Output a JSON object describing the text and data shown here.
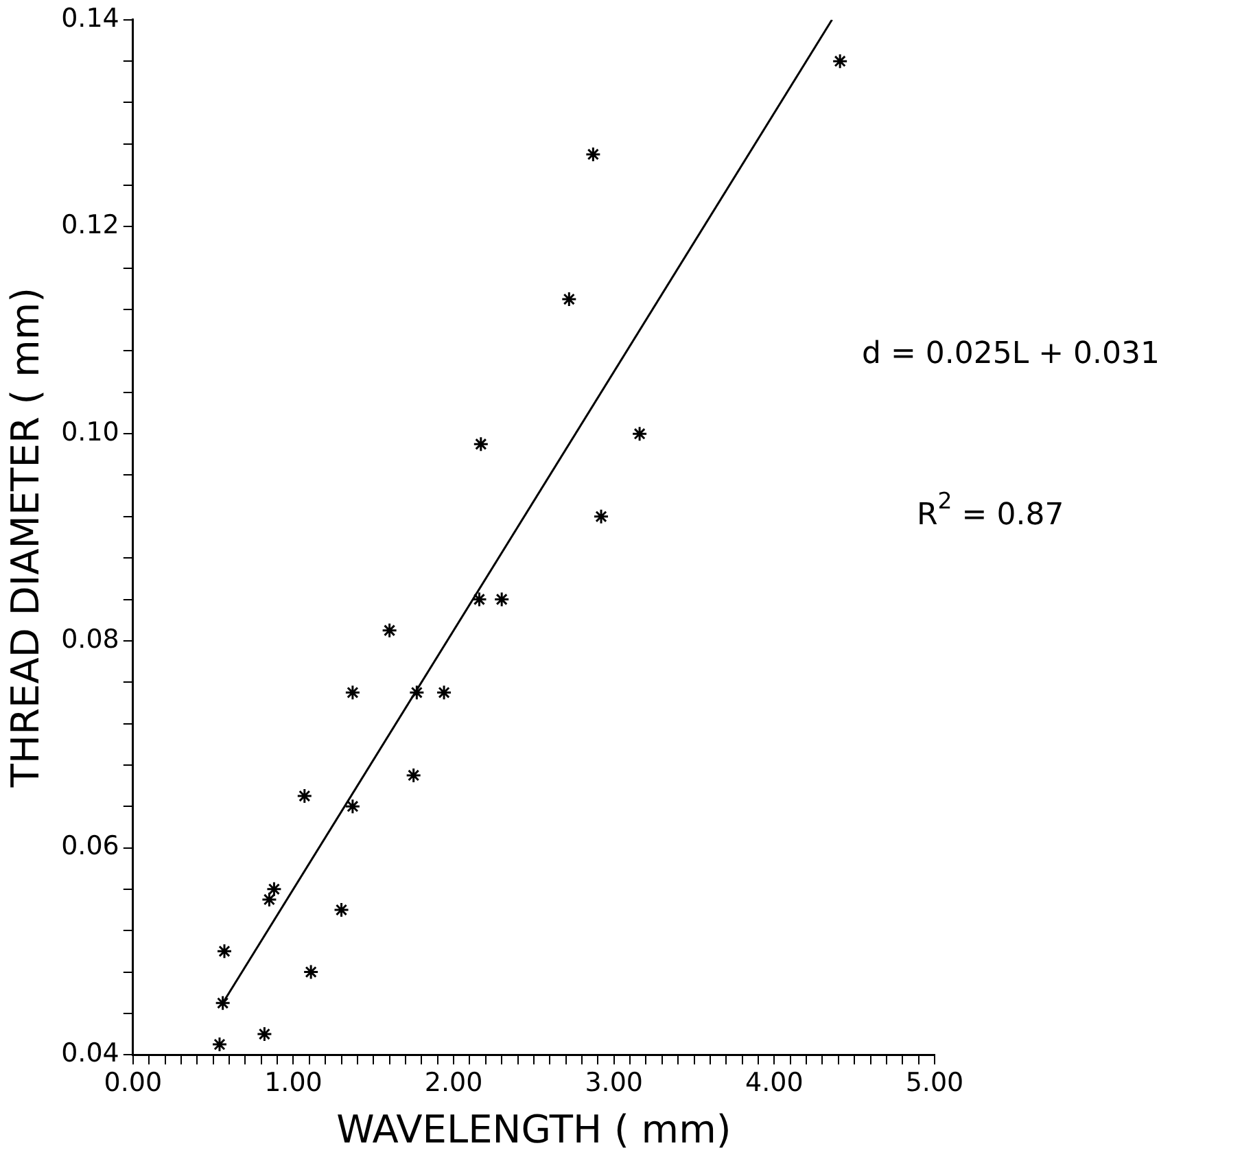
{
  "chart_data": {
    "type": "scatter",
    "xlabel": "WAVELENGTH ( mm)",
    "ylabel": "THREAD DIAMETER ( mm)",
    "xlim": [
      0,
      5
    ],
    "ylim": [
      0.04,
      0.14
    ],
    "xticks": [
      {
        "value": 0,
        "label": "0.00"
      },
      {
        "value": 0.1,
        "label": null
      },
      {
        "value": 0.2,
        "label": null
      },
      {
        "value": 0.3,
        "label": null
      },
      {
        "value": 0.4,
        "label": null
      },
      {
        "value": 0.5,
        "label": null
      },
      {
        "value": 0.6,
        "label": null
      },
      {
        "value": 0.7,
        "label": null
      },
      {
        "value": 0.8,
        "label": null
      },
      {
        "value": 0.9,
        "label": null
      },
      {
        "value": 1,
        "label": "1.00"
      },
      {
        "value": 1.1,
        "label": null
      },
      {
        "value": 1.2,
        "label": null
      },
      {
        "value": 1.3,
        "label": null
      },
      {
        "value": 1.4,
        "label": null
      },
      {
        "value": 1.5,
        "label": null
      },
      {
        "value": 1.6,
        "label": null
      },
      {
        "value": 1.7,
        "label": null
      },
      {
        "value": 1.8,
        "label": null
      },
      {
        "value": 1.9,
        "label": null
      },
      {
        "value": 2,
        "label": "2.00"
      },
      {
        "value": 2.1,
        "label": null
      },
      {
        "value": 2.2,
        "label": null
      },
      {
        "value": 2.3,
        "label": null
      },
      {
        "value": 2.4,
        "label": null
      },
      {
        "value": 2.5,
        "label": null
      },
      {
        "value": 2.6,
        "label": null
      },
      {
        "value": 2.7,
        "label": null
      },
      {
        "value": 2.8,
        "label": null
      },
      {
        "value": 2.9,
        "label": null
      },
      {
        "value": 3,
        "label": "3.00"
      },
      {
        "value": 3.1,
        "label": null
      },
      {
        "value": 3.2,
        "label": null
      },
      {
        "value": 3.3,
        "label": null
      },
      {
        "value": 3.4,
        "label": null
      },
      {
        "value": 3.5,
        "label": null
      },
      {
        "value": 3.6,
        "label": null
      },
      {
        "value": 3.7,
        "label": null
      },
      {
        "value": 3.8,
        "label": null
      },
      {
        "value": 3.9,
        "label": null
      },
      {
        "value": 4,
        "label": "4.00"
      },
      {
        "value": 4.1,
        "label": null
      },
      {
        "value": 4.2,
        "label": null
      },
      {
        "value": 4.3,
        "label": null
      },
      {
        "value": 4.4,
        "label": null
      },
      {
        "value": 4.5,
        "label": null
      },
      {
        "value": 4.6,
        "label": null
      },
      {
        "value": 4.7,
        "label": null
      },
      {
        "value": 4.8,
        "label": null
      },
      {
        "value": 4.9,
        "label": null
      },
      {
        "value": 5,
        "label": "5.00"
      }
    ],
    "yticks": [
      {
        "value": 0.04,
        "label": "0.04"
      },
      {
        "value": 0.044,
        "label": null
      },
      {
        "value": 0.048,
        "label": null
      },
      {
        "value": 0.052,
        "label": null
      },
      {
        "value": 0.056,
        "label": null
      },
      {
        "value": 0.06,
        "label": "0.06"
      },
      {
        "value": 0.064,
        "label": null
      },
      {
        "value": 0.068,
        "label": null
      },
      {
        "value": 0.072,
        "label": null
      },
      {
        "value": 0.076,
        "label": null
      },
      {
        "value": 0.08,
        "label": "0.08"
      },
      {
        "value": 0.084,
        "label": null
      },
      {
        "value": 0.088,
        "label": null
      },
      {
        "value": 0.092,
        "label": null
      },
      {
        "value": 0.096,
        "label": null
      },
      {
        "value": 0.1,
        "label": "0.10"
      },
      {
        "value": 0.104,
        "label": null
      },
      {
        "value": 0.108,
        "label": null
      },
      {
        "value": 0.112,
        "label": null
      },
      {
        "value": 0.116,
        "label": null
      },
      {
        "value": 0.12,
        "label": "0.12"
      },
      {
        "value": 0.124,
        "label": null
      },
      {
        "value": 0.128,
        "label": null
      },
      {
        "value": 0.132,
        "label": null
      },
      {
        "value": 0.136,
        "label": null
      },
      {
        "value": 0.14,
        "label": "0.14"
      }
    ],
    "grid": false,
    "legend": false,
    "marker": "cross",
    "series": [
      {
        "color": "#000000",
        "x": [
          0.54,
          0.82,
          0.56,
          0.57,
          1.11,
          0.85,
          0.88,
          1.3,
          1.07,
          1.37,
          1.75,
          1.37,
          1.77,
          1.94,
          1.6,
          2.16,
          2.3,
          2.17,
          2.87,
          2.72,
          3.16,
          2.92,
          4.41
        ],
        "values": [
          0.041,
          0.042,
          0.045,
          0.05,
          0.048,
          0.055,
          0.056,
          0.054,
          0.065,
          0.064,
          0.067,
          0.075,
          0.075,
          0.075,
          0.081,
          0.084,
          0.084,
          0.099,
          0.127,
          0.113,
          0.1,
          0.092,
          0.136
        ]
      },
      {
        "type": "line",
        "color": "#000000",
        "x": [
          0.56,
          4.36
        ],
        "values": [
          0.045,
          0.14
        ],
        "marker": "none",
        "line_style": "solid"
      }
    ],
    "annotations": [
      "d = 0.025L + 0.031",
      "R$^{2}$ = 0.87"
    ]
  }
}
